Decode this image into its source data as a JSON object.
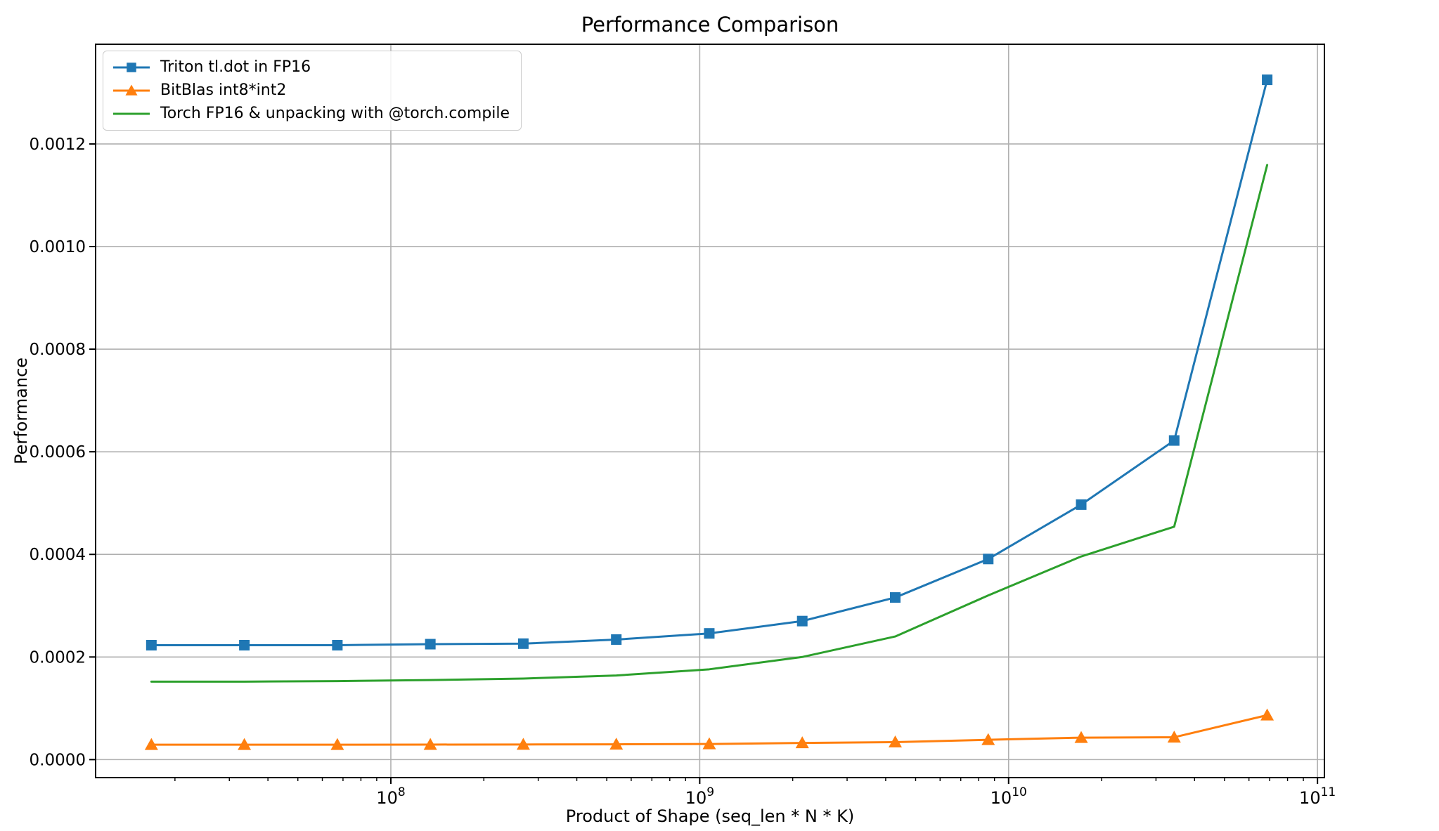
{
  "figure": {
    "kind": "matplotlib-line-chart-screenshot",
    "background": "#ffffff",
    "grid_color": "#b0b0b0",
    "spine_color": "#000000",
    "legend_border_color": "#cccccc"
  },
  "chart_data": {
    "type": "line",
    "title": "Performance Comparison",
    "xlabel": "Product of Shape (seq_len * N * K)",
    "ylabel": "Performance",
    "x_scale": "log",
    "grid": true,
    "legend_position": "upper-left",
    "xlim": [
      11070000,
      105300000000
    ],
    "ylim": [
      -3.51e-05,
      0.0013943
    ],
    "x_major_tick_exponents": [
      8,
      9,
      10,
      11
    ],
    "x_tick_label_base": "10",
    "y_ticks": [
      0.0,
      0.0002,
      0.0004,
      0.0006,
      0.0008,
      0.001,
      0.0012
    ],
    "y_tick_labels": [
      "0.0000",
      "0.0002",
      "0.0004",
      "0.0006",
      "0.0008",
      "0.0010",
      "0.0012"
    ],
    "x": [
      16777216,
      33554432,
      67108864,
      134217728,
      268435456,
      536870912,
      1073741824,
      2147483648,
      4294967296,
      8589934592,
      17179869184,
      34359738368,
      68719476736
    ],
    "series": [
      {
        "name": "Triton tl.dot in FP16",
        "color": "#1f77b4",
        "marker": "square",
        "values": [
          0.000223,
          0.000223,
          0.000223,
          0.000225,
          0.000226,
          0.000234,
          0.000246,
          0.00027,
          0.000316,
          0.000391,
          0.000497,
          0.000622,
          0.001325
        ]
      },
      {
        "name": "BitBlas int8*int2",
        "color": "#ff7f0e",
        "marker": "triangle-up",
        "values": [
          2.9e-05,
          2.9e-05,
          2.91e-05,
          2.93e-05,
          2.95e-05,
          2.98e-05,
          3.04e-05,
          3.25e-05,
          3.4e-05,
          3.86e-05,
          4.28e-05,
          4.35e-05,
          8.66e-05
        ]
      },
      {
        "name": "Torch FP16 & unpacking with @torch.compile",
        "color": "#2ca02c",
        "marker": "none",
        "values": [
          0.000152,
          0.000152,
          0.000153,
          0.000155,
          0.000158,
          0.000164,
          0.000176,
          0.0002,
          0.00024,
          0.00032,
          0.000396,
          0.000454,
          0.001159
        ]
      }
    ]
  }
}
